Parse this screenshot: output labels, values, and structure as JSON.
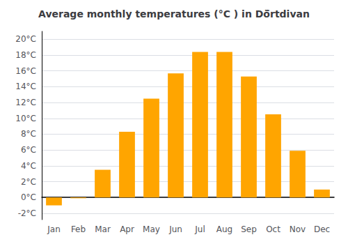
{
  "chart_data": {
    "type": "bar",
    "title": "Average monthly temperatures (°C ) in Dö̈rtdivan",
    "categories": [
      "Jan",
      "Feb",
      "Mar",
      "Apr",
      "May",
      "Jun",
      "Jul",
      "Aug",
      "Sep",
      "Oct",
      "Nov",
      "Dec"
    ],
    "values": [
      -1.0,
      -0.1,
      3.5,
      8.3,
      12.5,
      15.7,
      18.4,
      18.4,
      15.3,
      10.5,
      5.9,
      1.0
    ],
    "color": "#FFA500",
    "ylim": [
      -2.8,
      21.0
    ],
    "yticks": [
      {
        "value": -2,
        "label": "-2°C"
      },
      {
        "value": 0,
        "label": "0°C"
      },
      {
        "value": 2,
        "label": "2°C"
      },
      {
        "value": 4,
        "label": "4°C"
      },
      {
        "value": 6,
        "label": "6°C"
      },
      {
        "value": 8,
        "label": "8°C"
      },
      {
        "value": 10,
        "label": "10°C"
      },
      {
        "value": 12,
        "label": "12°C"
      },
      {
        "value": 14,
        "label": "14°C"
      },
      {
        "value": 16,
        "label": "16°C"
      },
      {
        "value": 18,
        "label": "18°C"
      },
      {
        "value": 20,
        "label": "20°C"
      }
    ],
    "grid": true
  }
}
